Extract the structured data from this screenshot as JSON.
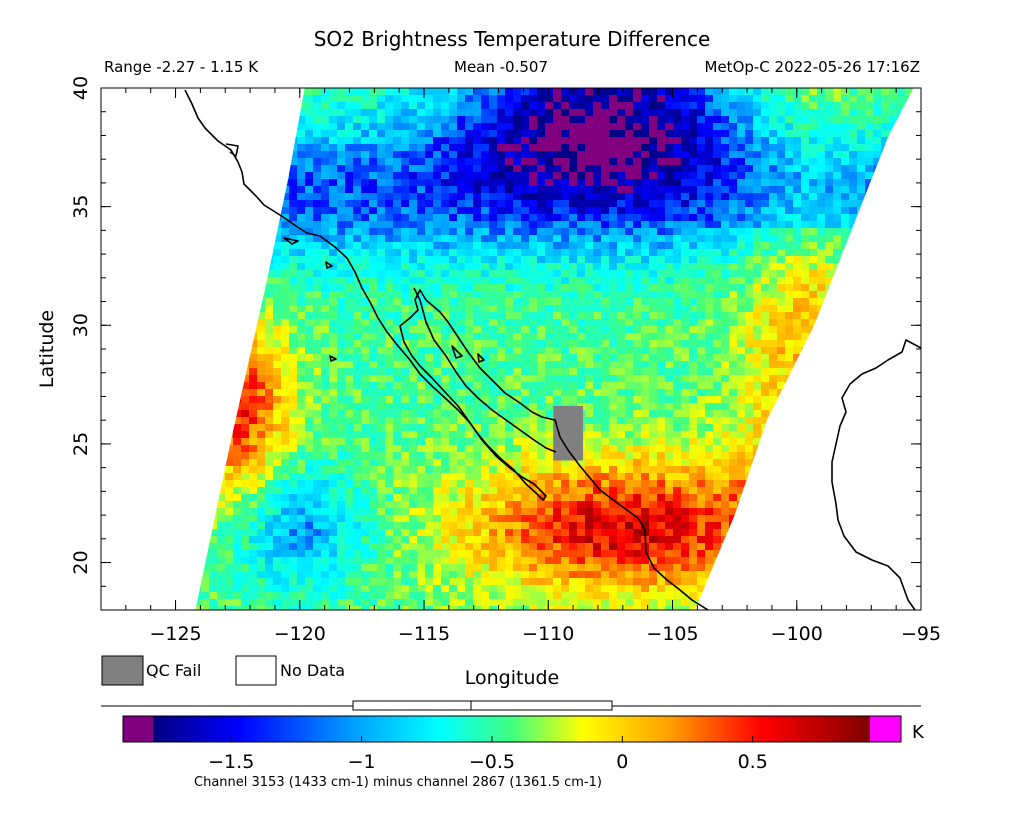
{
  "header": {
    "title": "SO2 Brightness Temperature Difference",
    "range_text": "Range -2.27 - 1.15 K",
    "mean_text": "Mean -0.507",
    "satellite_time_text": "MetOp-C 2022-05-26 17:16Z"
  },
  "map": {
    "x_axis_label": "Longitude",
    "y_axis_label": "Latitude",
    "lon_range": [
      -128,
      -95
    ],
    "lat_range": [
      18,
      40
    ],
    "x_tick_values": [
      -125,
      -120,
      -115,
      -110,
      -105,
      -100,
      -95
    ],
    "x_tick_labels": [
      "−125",
      "−120",
      "−115",
      "−110",
      "−105",
      "−100",
      "−95"
    ],
    "y_tick_values": [
      20,
      25,
      30,
      35,
      40
    ],
    "y_tick_labels": [
      "20",
      "25",
      "30",
      "35",
      "40"
    ],
    "swath_edges_lon": {
      "west": [
        [
          18,
          -124.2
        ],
        [
          25,
          -122.8
        ],
        [
          32,
          -121.3
        ],
        [
          36,
          -120.5
        ],
        [
          40,
          -119.8
        ]
      ],
      "east": [
        [
          18,
          -104.1
        ],
        [
          22,
          -102.5
        ],
        [
          26,
          -101.2
        ],
        [
          30,
          -99.3
        ],
        [
          34,
          -97.8
        ],
        [
          38,
          -96.3
        ],
        [
          40,
          -95.3
        ]
      ]
    },
    "field_regions": [
      {
        "description": "strong negative (purple/navy)",
        "center": [
          -108,
          38.5
        ],
        "value_K": -1.8
      },
      {
        "description": "blue band",
        "center": [
          -110,
          34
        ],
        "value_K": -1.2
      },
      {
        "description": "warm positive (red) west",
        "center": [
          -122.5,
          26
        ],
        "value_K": 0.5
      },
      {
        "description": "warm positive (red/orange) south",
        "center": [
          -108,
          22
        ],
        "value_K": 0.6
      },
      {
        "description": "blue patch SW",
        "center": [
          -120,
          21.5
        ],
        "value_K": -1.0
      }
    ],
    "qc_fail_area": {
      "lon": [
        -109.8,
        -108.6
      ],
      "lat": [
        24.3,
        26.6
      ]
    }
  },
  "legend": {
    "qc_fail_label": "QC Fail",
    "qc_fail_color": "#808080",
    "no_data_label": "No Data",
    "no_data_color": "#ffffff"
  },
  "colorbar": {
    "min": -1.8,
    "max": 0.95,
    "under_color": "#800080",
    "over_color": "#ff00ff",
    "unit": "K",
    "tick_values": [
      -1.5,
      -1,
      -0.5,
      0,
      0.5
    ],
    "tick_labels": [
      "−1.5",
      "−1",
      "−0.5",
      "0",
      "0.5"
    ],
    "gradient_colors": [
      "#000080",
      "#0000ff",
      "#00a0ff",
      "#00ffff",
      "#40ff80",
      "#ffff00",
      "#ffa000",
      "#ff0000",
      "#800000"
    ],
    "caption": "Channel 3153 (1433 cm-1) minus channel 2867 (1361.5 cm-1)"
  }
}
